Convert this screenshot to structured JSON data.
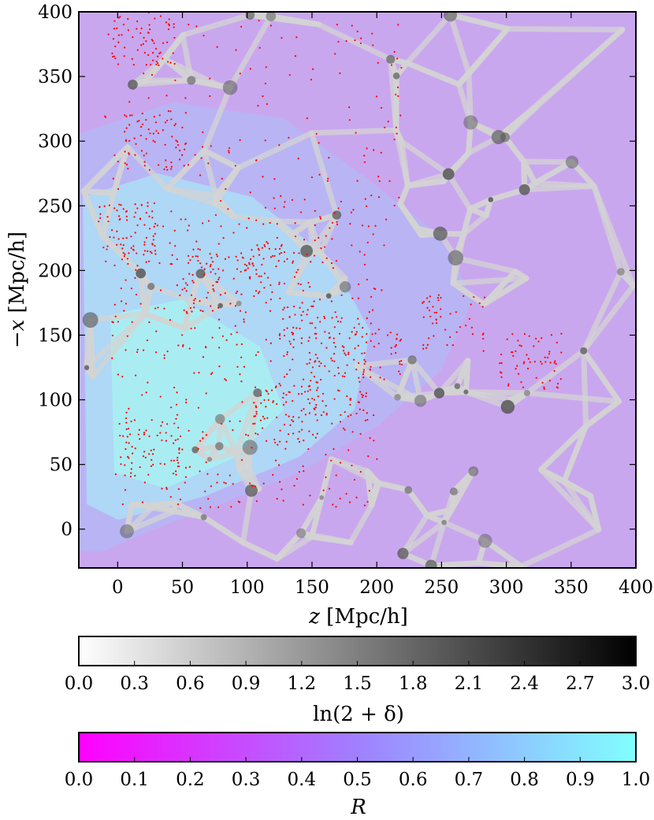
{
  "chart_data": {
    "type": "heatmap",
    "title": "",
    "xlabel": {
      "var": "z",
      "unit": "[Mpc/h]"
    },
    "ylabel": {
      "var": "−x",
      "unit": "[Mpc/h]"
    },
    "xlim": [
      -30,
      400
    ],
    "ylim": [
      -30,
      400
    ],
    "xticks": [
      "0",
      "50",
      "100",
      "150",
      "200",
      "250",
      "300",
      "350",
      "400"
    ],
    "yticks": [
      "0",
      "50",
      "100",
      "150",
      "200",
      "250",
      "300",
      "350",
      "400"
    ],
    "xtick_values": [
      0,
      50,
      100,
      150,
      200,
      250,
      300,
      350,
      400
    ],
    "ytick_values": [
      0,
      50,
      100,
      150,
      200,
      250,
      300,
      350,
      400
    ],
    "grid": false,
    "background_field": "density ln(2+δ), grayscale 0–3, overlaid with survey response R (magenta→cyan)",
    "point_overlay_color": "#ff0000",
    "colorbars": [
      {
        "label": "ln(2 + δ)",
        "ticks": [
          "0.0",
          "0.3",
          "0.6",
          "0.9",
          "1.2",
          "1.5",
          "1.8",
          "2.1",
          "2.4",
          "2.7",
          "3.0"
        ],
        "range": [
          0.0,
          3.0
        ],
        "color_start": "#ffffff",
        "color_end": "#000000"
      },
      {
        "label": "R",
        "ticks": [
          "0.0",
          "0.1",
          "0.2",
          "0.3",
          "0.4",
          "0.5",
          "0.6",
          "0.7",
          "0.8",
          "0.9",
          "1.0"
        ],
        "range": [
          0.0,
          1.0
        ],
        "color_start": "#ff00ff",
        "color_end": "#80ffff"
      }
    ]
  }
}
